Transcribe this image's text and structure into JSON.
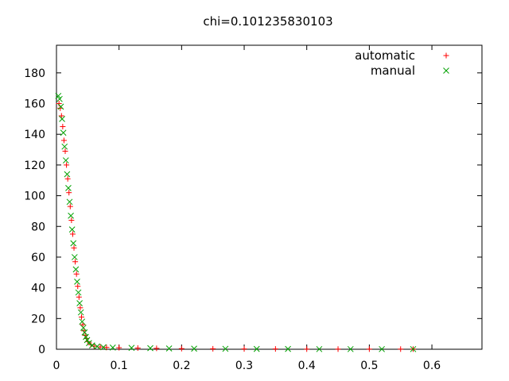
{
  "chart_data": {
    "type": "scatter",
    "title": "chi=0.101235830103",
    "xlabel": "",
    "ylabel": "",
    "xlim": [
      0,
      0.68
    ],
    "ylim": [
      0,
      198
    ],
    "xticks": [
      0,
      0.1,
      0.2,
      0.3,
      0.4,
      0.5,
      0.6
    ],
    "xtick_labels": [
      "0",
      "0.1",
      "0.2",
      "0.3",
      "0.4",
      "0.5",
      "0.6"
    ],
    "yticks": [
      0,
      20,
      40,
      60,
      80,
      100,
      120,
      140,
      160,
      180
    ],
    "ytick_labels": [
      "0",
      "20",
      "40",
      "60",
      "80",
      "100",
      "120",
      "140",
      "160",
      "180"
    ],
    "grid": false,
    "legend_position": "top-right",
    "series": [
      {
        "name": "automatic",
        "marker": "plus",
        "color": "#ff0000",
        "points": [
          [
            0.004,
            160
          ],
          [
            0.006,
            157
          ],
          [
            0.008,
            152
          ],
          [
            0.01,
            145
          ],
          [
            0.012,
            136
          ],
          [
            0.014,
            129
          ],
          [
            0.016,
            120
          ],
          [
            0.018,
            111
          ],
          [
            0.02,
            102
          ],
          [
            0.022,
            93
          ],
          [
            0.024,
            84
          ],
          [
            0.026,
            75
          ],
          [
            0.028,
            66
          ],
          [
            0.03,
            57
          ],
          [
            0.032,
            49
          ],
          [
            0.034,
            41
          ],
          [
            0.036,
            34
          ],
          [
            0.038,
            27
          ],
          [
            0.04,
            21
          ],
          [
            0.042,
            16
          ],
          [
            0.044,
            12
          ],
          [
            0.046,
            9
          ],
          [
            0.048,
            7
          ],
          [
            0.05,
            5
          ],
          [
            0.055,
            3
          ],
          [
            0.06,
            2
          ],
          [
            0.07,
            1.5
          ],
          [
            0.08,
            1.2
          ],
          [
            0.1,
            1
          ],
          [
            0.13,
            0.8
          ],
          [
            0.16,
            0.6
          ],
          [
            0.2,
            0.4
          ],
          [
            0.25,
            0.3
          ],
          [
            0.3,
            0.2
          ],
          [
            0.35,
            0.2
          ],
          [
            0.4,
            0.1
          ],
          [
            0.45,
            0.1
          ],
          [
            0.5,
            0.1
          ],
          [
            0.55,
            0.1
          ],
          [
            0.57,
            0.1
          ]
        ]
      },
      {
        "name": "manual",
        "marker": "x",
        "color": "#00a000",
        "points": [
          [
            0.003,
            165
          ],
          [
            0.005,
            163
          ],
          [
            0.007,
            158
          ],
          [
            0.009,
            150
          ],
          [
            0.011,
            141
          ],
          [
            0.013,
            132
          ],
          [
            0.015,
            123
          ],
          [
            0.017,
            114
          ],
          [
            0.019,
            105
          ],
          [
            0.021,
            96
          ],
          [
            0.023,
            87
          ],
          [
            0.025,
            78
          ],
          [
            0.027,
            69
          ],
          [
            0.029,
            60
          ],
          [
            0.031,
            52
          ],
          [
            0.033,
            44
          ],
          [
            0.035,
            37
          ],
          [
            0.037,
            30
          ],
          [
            0.039,
            24
          ],
          [
            0.041,
            18
          ],
          [
            0.043,
            14
          ],
          [
            0.045,
            11
          ],
          [
            0.047,
            8
          ],
          [
            0.049,
            6
          ],
          [
            0.052,
            4
          ],
          [
            0.057,
            2.5
          ],
          [
            0.065,
            1.8
          ],
          [
            0.075,
            1.3
          ],
          [
            0.09,
            1.1
          ],
          [
            0.12,
            0.9
          ],
          [
            0.15,
            0.7
          ],
          [
            0.18,
            0.5
          ],
          [
            0.22,
            0.4
          ],
          [
            0.27,
            0.3
          ],
          [
            0.32,
            0.2
          ],
          [
            0.37,
            0.2
          ],
          [
            0.42,
            0.1
          ],
          [
            0.47,
            0.1
          ],
          [
            0.52,
            0.1
          ],
          [
            0.57,
            0.1
          ]
        ]
      }
    ]
  }
}
